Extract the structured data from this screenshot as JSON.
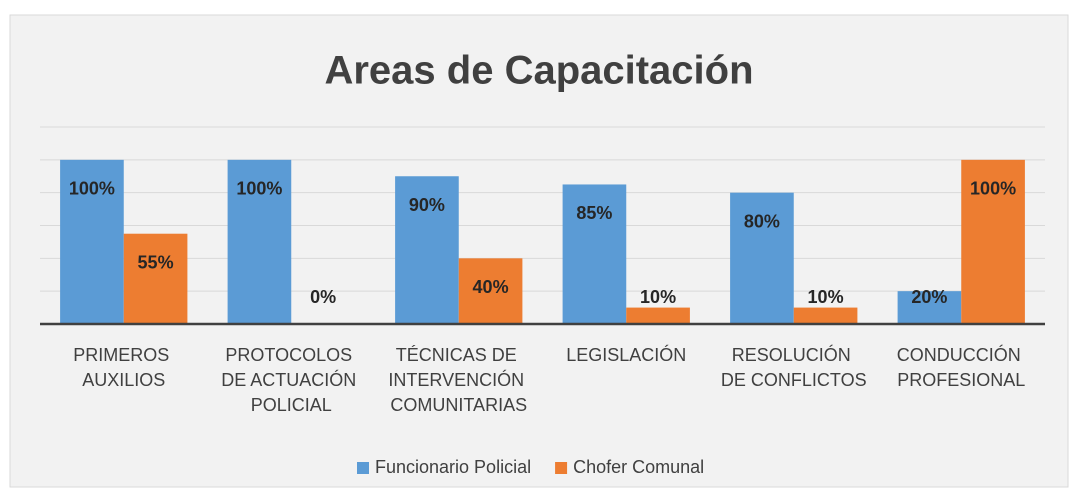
{
  "chart_data": {
    "type": "bar",
    "title": "Areas de Capacitación",
    "categories": [
      "PRIMEROS\nAUXILIOS",
      "PROTOCOLOS\nDE ACTUACIÓN\nPOLICIAL",
      "TÉCNICAS DE\nINTERVENCIÓN\nCOMUNITARIAS",
      "LEGISLACIÓN",
      "RESOLUCIÓN\nDE CONFLICTOS",
      "CONDUCCIÓN\nPROFESIONAL"
    ],
    "series": [
      {
        "name": "Funcionario Policial",
        "color": "#5b9bd5",
        "values": [
          100,
          100,
          90,
          85,
          80,
          20
        ],
        "value_labels": [
          "100%",
          "100%",
          "90%",
          "85%",
          "80%",
          "20%"
        ]
      },
      {
        "name": "Chofer Comunal",
        "color": "#ed7d31",
        "values": [
          55,
          0,
          40,
          10,
          10,
          100
        ],
        "value_labels": [
          "55%",
          "0%",
          "40%",
          "10%",
          "10%",
          "100%"
        ]
      }
    ],
    "ylim": [
      0,
      120
    ],
    "yticks": [
      0,
      20,
      40,
      60,
      80,
      100,
      120
    ],
    "grid": true,
    "legend": "bottom"
  }
}
